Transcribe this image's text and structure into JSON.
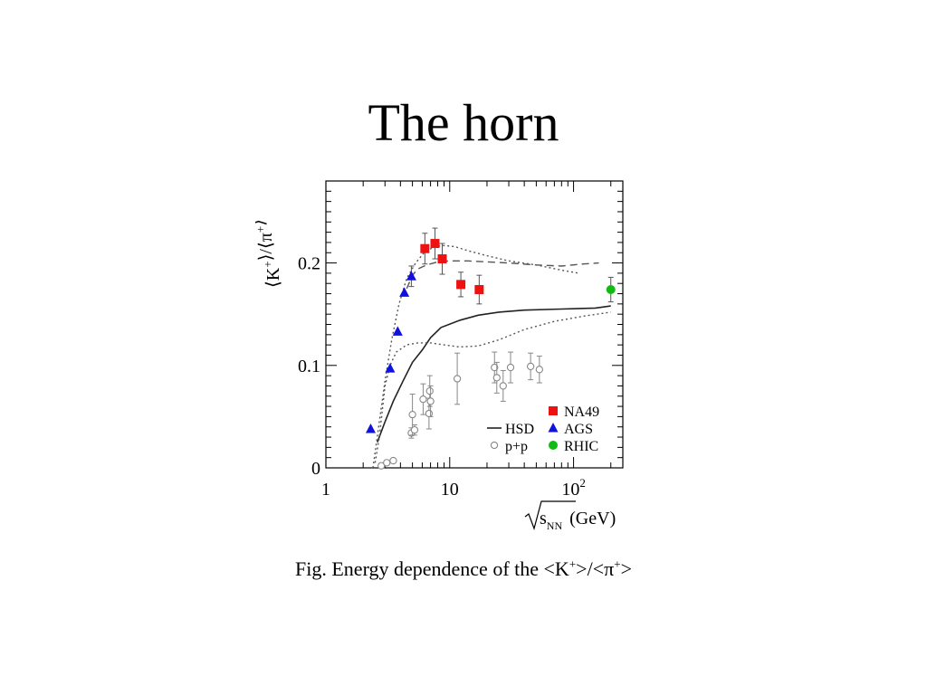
{
  "slide": {
    "title": "The horn",
    "caption_prefix": "Fig. Energy dependence of the <K",
    "caption_mid": ">/<π",
    "caption_suffix": ">",
    "caption_sup": "+"
  },
  "chart_data": {
    "type": "scatter",
    "title": "",
    "ylabel_main": "⟨K",
    "ylabel_mid": "⟩/⟨π",
    "ylabel_end": "⟩",
    "ylabel_sup": "+",
    "xlabel_main": "s",
    "xlabel_sub": "NN",
    "xlabel_unit": "(GeV)",
    "x_scale": "log",
    "xlim": [
      1,
      250
    ],
    "ylim": [
      0,
      0.28
    ],
    "x_ticks": [
      {
        "value": 1,
        "label": "1",
        "sup": ""
      },
      {
        "value": 10,
        "label": "10",
        "sup": ""
      },
      {
        "value": 100,
        "label": "10",
        "sup": "2"
      }
    ],
    "y_ticks": [
      {
        "value": 0,
        "label": "0"
      },
      {
        "value": 0.1,
        "label": "0.1"
      },
      {
        "value": 0.2,
        "label": "0.2"
      }
    ],
    "legend_position": "bottom-right",
    "series": [
      {
        "name": "NA49",
        "marker": "square",
        "color": "#ee1111",
        "points": [
          {
            "x": 6.3,
            "y": 0.214,
            "err": 0.015
          },
          {
            "x": 7.6,
            "y": 0.219,
            "err": 0.015
          },
          {
            "x": 8.7,
            "y": 0.204,
            "err": 0.015
          },
          {
            "x": 12.3,
            "y": 0.179,
            "err": 0.012
          },
          {
            "x": 17.3,
            "y": 0.174,
            "err": 0.014
          }
        ]
      },
      {
        "name": "AGS",
        "marker": "triangle",
        "color": "#1111dd",
        "points": [
          {
            "x": 2.3,
            "y": 0.038,
            "err": 0
          },
          {
            "x": 3.3,
            "y": 0.097,
            "err": 0
          },
          {
            "x": 3.8,
            "y": 0.133,
            "err": 0
          },
          {
            "x": 4.3,
            "y": 0.171,
            "err": 0
          },
          {
            "x": 4.9,
            "y": 0.187,
            "err": 0.01
          }
        ]
      },
      {
        "name": "RHIC",
        "marker": "circle",
        "color": "#11bb11",
        "points": [
          {
            "x": 200,
            "y": 0.174,
            "err": 0.012
          }
        ]
      },
      {
        "name": "p+p",
        "marker": "open-circle",
        "color": "#888888",
        "points": [
          {
            "x": 2.8,
            "y": 0.002,
            "err": 0
          },
          {
            "x": 3.1,
            "y": 0.005,
            "err": 0
          },
          {
            "x": 3.5,
            "y": 0.007,
            "err": 0
          },
          {
            "x": 4.9,
            "y": 0.034,
            "err": 0.005
          },
          {
            "x": 5.0,
            "y": 0.052,
            "err": 0.02
          },
          {
            "x": 5.2,
            "y": 0.037,
            "err": 0.005
          },
          {
            "x": 6.1,
            "y": 0.067,
            "err": 0.015
          },
          {
            "x": 6.8,
            "y": 0.053,
            "err": 0.015
          },
          {
            "x": 6.9,
            "y": 0.075,
            "err": 0.015
          },
          {
            "x": 7.0,
            "y": 0.065,
            "err": 0.015
          },
          {
            "x": 11.5,
            "y": 0.087,
            "err": 0.025
          },
          {
            "x": 23,
            "y": 0.098,
            "err": 0.015
          },
          {
            "x": 24,
            "y": 0.088,
            "err": 0.015
          },
          {
            "x": 27,
            "y": 0.08,
            "err": 0.015
          },
          {
            "x": 31,
            "y": 0.098,
            "err": 0.015
          },
          {
            "x": 45,
            "y": 0.099,
            "err": 0.013
          },
          {
            "x": 53,
            "y": 0.096,
            "err": 0.013
          }
        ]
      }
    ],
    "curves": [
      {
        "name": "HSD",
        "style": "solid",
        "points": [
          [
            2.6,
            0.025
          ],
          [
            3.0,
            0.045
          ],
          [
            3.5,
            0.065
          ],
          [
            4.2,
            0.085
          ],
          [
            5.0,
            0.103
          ],
          [
            6.0,
            0.115
          ],
          [
            7.0,
            0.127
          ],
          [
            8.5,
            0.137
          ],
          [
            12,
            0.144
          ],
          [
            17,
            0.149
          ],
          [
            25,
            0.152
          ],
          [
            40,
            0.154
          ],
          [
            80,
            0.155
          ],
          [
            150,
            0.156
          ],
          [
            200,
            0.158
          ]
        ]
      },
      {
        "name": "",
        "style": "dotted",
        "points": [
          [
            2.5,
            0.005
          ],
          [
            2.7,
            0.03
          ],
          [
            3.0,
            0.08
          ],
          [
            3.3,
            0.1
          ],
          [
            3.7,
            0.113
          ],
          [
            4.5,
            0.12
          ],
          [
            5.5,
            0.122
          ],
          [
            7,
            0.122
          ],
          [
            9,
            0.12
          ],
          [
            12,
            0.118
          ],
          [
            17,
            0.119
          ],
          [
            25,
            0.125
          ],
          [
            40,
            0.135
          ],
          [
            70,
            0.143
          ],
          [
            120,
            0.148
          ],
          [
            200,
            0.152
          ]
        ]
      },
      {
        "name": "",
        "style": "dotted",
        "points": [
          [
            2.4,
            0.0
          ],
          [
            2.7,
            0.045
          ],
          [
            3.0,
            0.085
          ],
          [
            3.4,
            0.125
          ],
          [
            3.9,
            0.16
          ],
          [
            4.5,
            0.185
          ],
          [
            5.3,
            0.2
          ],
          [
            6.2,
            0.21
          ],
          [
            7.5,
            0.216
          ],
          [
            9,
            0.217
          ],
          [
            11,
            0.216
          ],
          [
            14,
            0.212
          ],
          [
            20,
            0.207
          ],
          [
            30,
            0.202
          ],
          [
            50,
            0.198
          ],
          [
            80,
            0.193
          ],
          [
            110,
            0.19
          ]
        ]
      },
      {
        "name": "",
        "style": "dashed",
        "points": [
          [
            4.5,
            0.175
          ],
          [
            5.0,
            0.188
          ],
          [
            5.5,
            0.194
          ],
          [
            6.5,
            0.198
          ],
          [
            8,
            0.201
          ],
          [
            10,
            0.202
          ],
          [
            14,
            0.202
          ],
          [
            20,
            0.201
          ],
          [
            30,
            0.2
          ],
          [
            50,
            0.198
          ],
          [
            80,
            0.197
          ],
          [
            120,
            0.199
          ],
          [
            160,
            0.2
          ]
        ]
      }
    ]
  }
}
